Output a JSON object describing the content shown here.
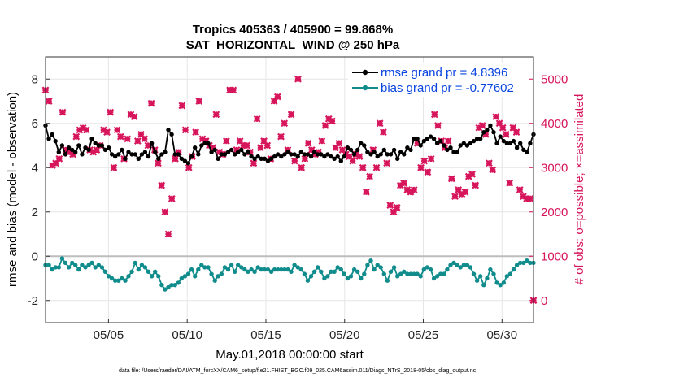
{
  "chart_data": {
    "type": "line",
    "title": "Tropics 405363 / 405900 = 99.868%",
    "subtitle": "SAT_HORIZONTAL_WIND @ 250 hPa",
    "xlabel": "May.01,2018 00:00:00 start",
    "ylabel": "rmse and bias (model - observation)",
    "y2label": "# of obs: o=possible; ×=assimilated",
    "footnote": "data file: /Users/raeder/DAI/ATM_forcXX/CAM6_setup/f.e21.FHIST_BGC.f09_025.CAM6assim.011/Diags_NTrS_2018-05/obs_diag_output.nc",
    "xlim": [
      1.0,
      32.0
    ],
    "ylim": [
      -3,
      9
    ],
    "y2lim": [
      -500,
      5500
    ],
    "xticks": [
      5,
      10,
      15,
      20,
      25,
      30
    ],
    "xtick_labels": [
      "05/05",
      "05/10",
      "05/15",
      "05/20",
      "05/25",
      "05/30"
    ],
    "yticks": [
      -2,
      0,
      2,
      4,
      6,
      8
    ],
    "ytick_labels": [
      "-2",
      "0",
      "2",
      "4",
      "6",
      "8"
    ],
    "y2ticks": [
      0,
      1000,
      2000,
      3000,
      4000,
      5000
    ],
    "y2tick_labels": [
      "0",
      "1000",
      "2000",
      "3000",
      "4000",
      "5000"
    ],
    "grid": true,
    "zero_line": true,
    "legend_position": "top-right",
    "colors": {
      "rmse": "#000000",
      "bias": "#118c8c",
      "obs": "#d6155b",
      "legend_text": "#0b45e0",
      "zero_line": "#bdbdbd",
      "grid": "#e6e6e6"
    },
    "series": [
      {
        "name": "rmse grand pr = 4.8396",
        "axis": "left",
        "values": [
          5.9,
          5.3,
          5.5,
          5.2,
          4.7,
          5.0,
          4.6,
          4.9,
          4.8,
          4.7,
          5.0,
          4.6,
          4.9,
          4.8,
          5.3,
          5.1,
          5.0,
          5.0,
          4.8,
          4.9,
          4.6,
          4.5,
          4.6,
          4.8,
          4.4,
          4.7,
          4.6,
          4.6,
          4.4,
          4.6,
          4.7,
          4.5,
          5.1,
          4.7,
          4.4,
          4.6,
          4.7,
          5.7,
          5.5,
          4.6,
          4.6,
          4.4,
          4.3,
          4.2,
          4.5,
          4.9,
          4.6,
          5.0,
          5.1,
          5.1,
          4.7,
          4.8,
          4.4,
          4.6,
          4.6,
          4.7,
          4.8,
          4.6,
          4.7,
          4.8,
          4.6,
          4.7,
          4.5,
          4.4,
          4.5,
          4.4,
          4.4,
          4.3,
          4.4,
          4.5,
          4.6,
          4.5,
          4.6,
          4.7,
          4.6,
          4.6,
          4.5,
          4.7,
          4.6,
          4.6,
          4.5,
          4.7,
          4.6,
          4.6,
          4.5,
          4.6,
          4.5,
          4.4,
          4.5,
          4.3,
          4.5,
          4.9,
          4.8,
          4.6,
          4.8,
          5.1,
          5.0,
          4.7,
          4.6,
          4.7,
          4.5,
          4.6,
          4.8,
          4.6,
          4.6,
          4.8,
          4.4,
          4.7,
          4.6,
          4.9,
          4.8,
          5.3,
          5.3,
          5.0,
          5.2,
          5.3,
          5.4,
          5.3,
          5.1,
          5.2,
          5.0,
          4.8,
          4.9,
          4.7,
          4.7,
          5.0,
          5.1,
          5.0,
          5.1,
          5.2,
          5.3,
          5.3,
          5.6,
          5.7,
          5.9,
          5.6,
          5.1,
          5.4,
          5.2,
          5.1,
          5.1,
          5.2,
          4.9,
          5.1,
          4.8,
          4.7,
          5.1,
          5.5
        ]
      },
      {
        "name": "bias grand pr = -0.77602",
        "axis": "left",
        "values": [
          -0.4,
          -0.4,
          -0.6,
          -0.5,
          -0.5,
          -0.1,
          -0.3,
          -0.5,
          -0.3,
          -0.4,
          -0.6,
          -0.4,
          -0.5,
          -0.4,
          -0.3,
          -0.5,
          -0.4,
          -0.5,
          -0.7,
          -0.9,
          -1.0,
          -1.1,
          -1.1,
          -1.0,
          -1.1,
          -0.9,
          -0.7,
          -0.3,
          -0.6,
          -0.4,
          -0.5,
          -0.7,
          -0.9,
          -0.7,
          -0.9,
          -1.3,
          -1.5,
          -1.4,
          -1.3,
          -1.3,
          -1.2,
          -1.0,
          -0.9,
          -0.8,
          -0.6,
          -0.9,
          -0.6,
          -0.4,
          -0.5,
          -0.5,
          -0.8,
          -1.1,
          -0.9,
          -0.8,
          -0.5,
          -0.6,
          -0.4,
          -0.7,
          -0.4,
          -0.5,
          -0.6,
          -0.7,
          -0.6,
          -0.7,
          -0.5,
          -0.6,
          -0.6,
          -0.6,
          -0.7,
          -0.6,
          -0.6,
          -0.6,
          -0.6,
          -0.6,
          -0.7,
          -0.4,
          -0.5,
          -0.6,
          -0.8,
          -1.1,
          -0.9,
          -0.7,
          -0.5,
          -0.7,
          -1.0,
          -0.9,
          -0.7,
          -0.7,
          -0.5,
          -0.6,
          -0.8,
          -1.0,
          -0.9,
          -0.6,
          -0.7,
          -1.0,
          -0.8,
          -0.4,
          -0.2,
          -0.6,
          -0.4,
          -0.5,
          -0.8,
          -1.1,
          -0.7,
          -0.5,
          -0.9,
          -0.8,
          -0.7,
          -0.8,
          -0.8,
          -0.8,
          -0.8,
          -0.9,
          -0.6,
          -0.5,
          -0.6,
          -1.0,
          -0.9,
          -0.8,
          -0.8,
          -0.6,
          -0.4,
          -0.3,
          -0.4,
          -0.5,
          -0.4,
          -0.4,
          -0.5,
          -0.8,
          -1.1,
          -0.9,
          -1.3,
          -1.0,
          -0.6,
          -0.8,
          -1.2,
          -1.3,
          -1.2,
          -0.9,
          -0.8,
          -0.6,
          -0.4,
          -0.3,
          -0.3,
          -0.2,
          -0.3,
          -0.3
        ]
      },
      {
        "name": "# of obs",
        "axis": "right",
        "values": [
          4750,
          4500,
          3050,
          3100,
          3200,
          4250,
          3400,
          3350,
          3300,
          3700,
          3850,
          3900,
          3850,
          3400,
          3350,
          3400,
          3500,
          3850,
          3800,
          4250,
          3000,
          3850,
          3700,
          3200,
          3650,
          4200,
          4150,
          3600,
          3750,
          3650,
          3500,
          4450,
          3400,
          3100,
          2600,
          2000,
          1500,
          2300,
          3200,
          3350,
          4400,
          3850,
          3000,
          3250,
          3800,
          4500,
          3650,
          3600,
          3500,
          3450,
          4200,
          3350,
          3300,
          3600,
          4750,
          4750,
          3400,
          3600,
          3500,
          3500,
          3350,
          3100,
          4100,
          3450,
          3600,
          3500,
          3200,
          4500,
          4600,
          3700,
          4000,
          3400,
          4200,
          3150,
          5000,
          3000,
          3200,
          3550,
          3400,
          3300,
          3350,
          3600,
          3950,
          4100,
          4050,
          3450,
          3550,
          3400,
          3300,
          3250,
          3150,
          3300,
          3250,
          3000,
          2450,
          2800,
          3400,
          3000,
          4000,
          3800,
          3100,
          2150,
          2000,
          2100,
          2600,
          2650,
          2500,
          2450,
          2500,
          3550,
          3000,
          3150,
          2900,
          3200,
          4200,
          3950,
          3600,
          3450,
          3600,
          2750,
          2350,
          2500,
          2400,
          2450,
          2800,
          2850,
          2600,
          3900,
          3950,
          3750,
          3100,
          2950,
          4150,
          4000,
          3900,
          3750,
          2650,
          3900,
          3800,
          2500,
          2350,
          2300,
          2300,
          0
        ]
      }
    ]
  }
}
